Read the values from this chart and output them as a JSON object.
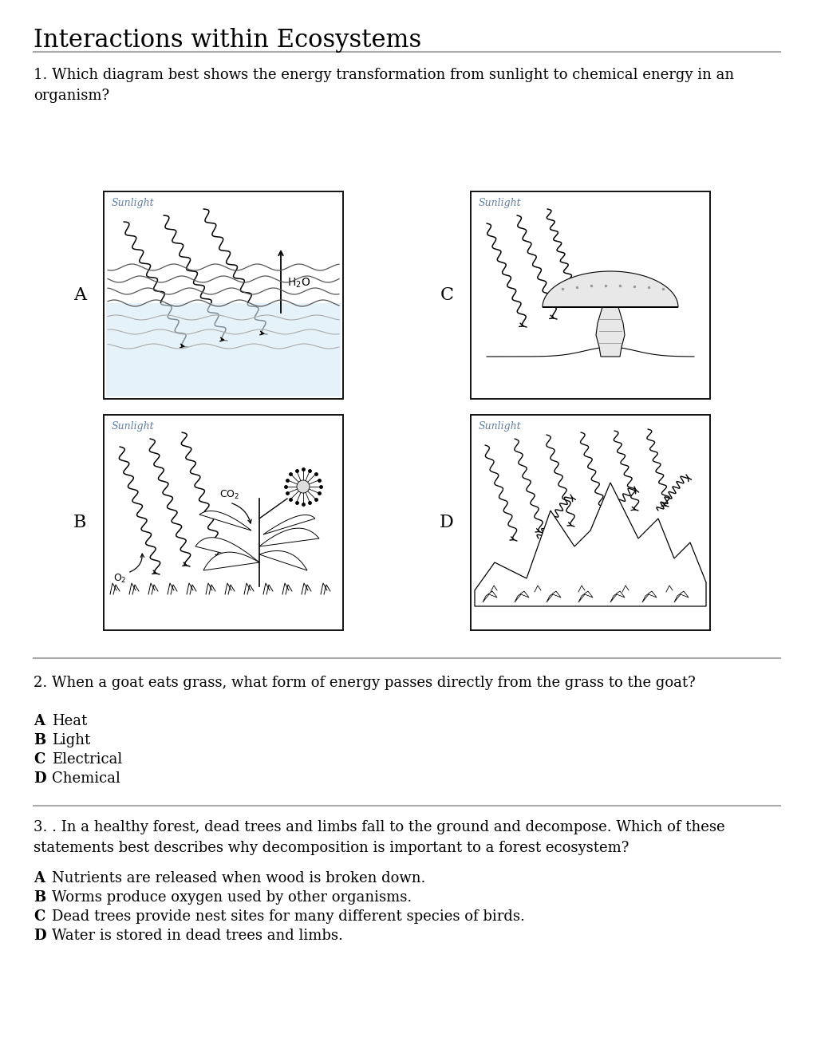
{
  "title": "Interactions within Ecosystems",
  "bg_color": "#ffffff",
  "q1_text": "1. Which diagram best shows the energy transformation from sunlight to chemical energy in an\norganism?",
  "q2_text": "2. When a goat eats grass, what form of energy passes directly from the grass to the goat?",
  "q2_options": [
    [
      "A",
      "Heat"
    ],
    [
      "B",
      "Light"
    ],
    [
      "C",
      "Electrical"
    ],
    [
      "D",
      "Chemical"
    ]
  ],
  "q3_text": "3. . In a healthy forest, dead trees and limbs fall to the ground and decompose. Which of these\nstatements best describes why decomposition is important to a forest ecosystem?",
  "q3_options": [
    [
      "A",
      "Nutrients are released when wood is broken down."
    ],
    [
      "B",
      "Worms produce oxygen used by other organisms."
    ],
    [
      "C",
      "Dead trees provide nest sites for many different species of birds."
    ],
    [
      "D",
      "Water is stored in dead trees and limbs."
    ]
  ],
  "sunlight_color": "#5b7fa6",
  "title_fontsize": 22,
  "body_fontsize": 13,
  "option_fontsize": 13
}
